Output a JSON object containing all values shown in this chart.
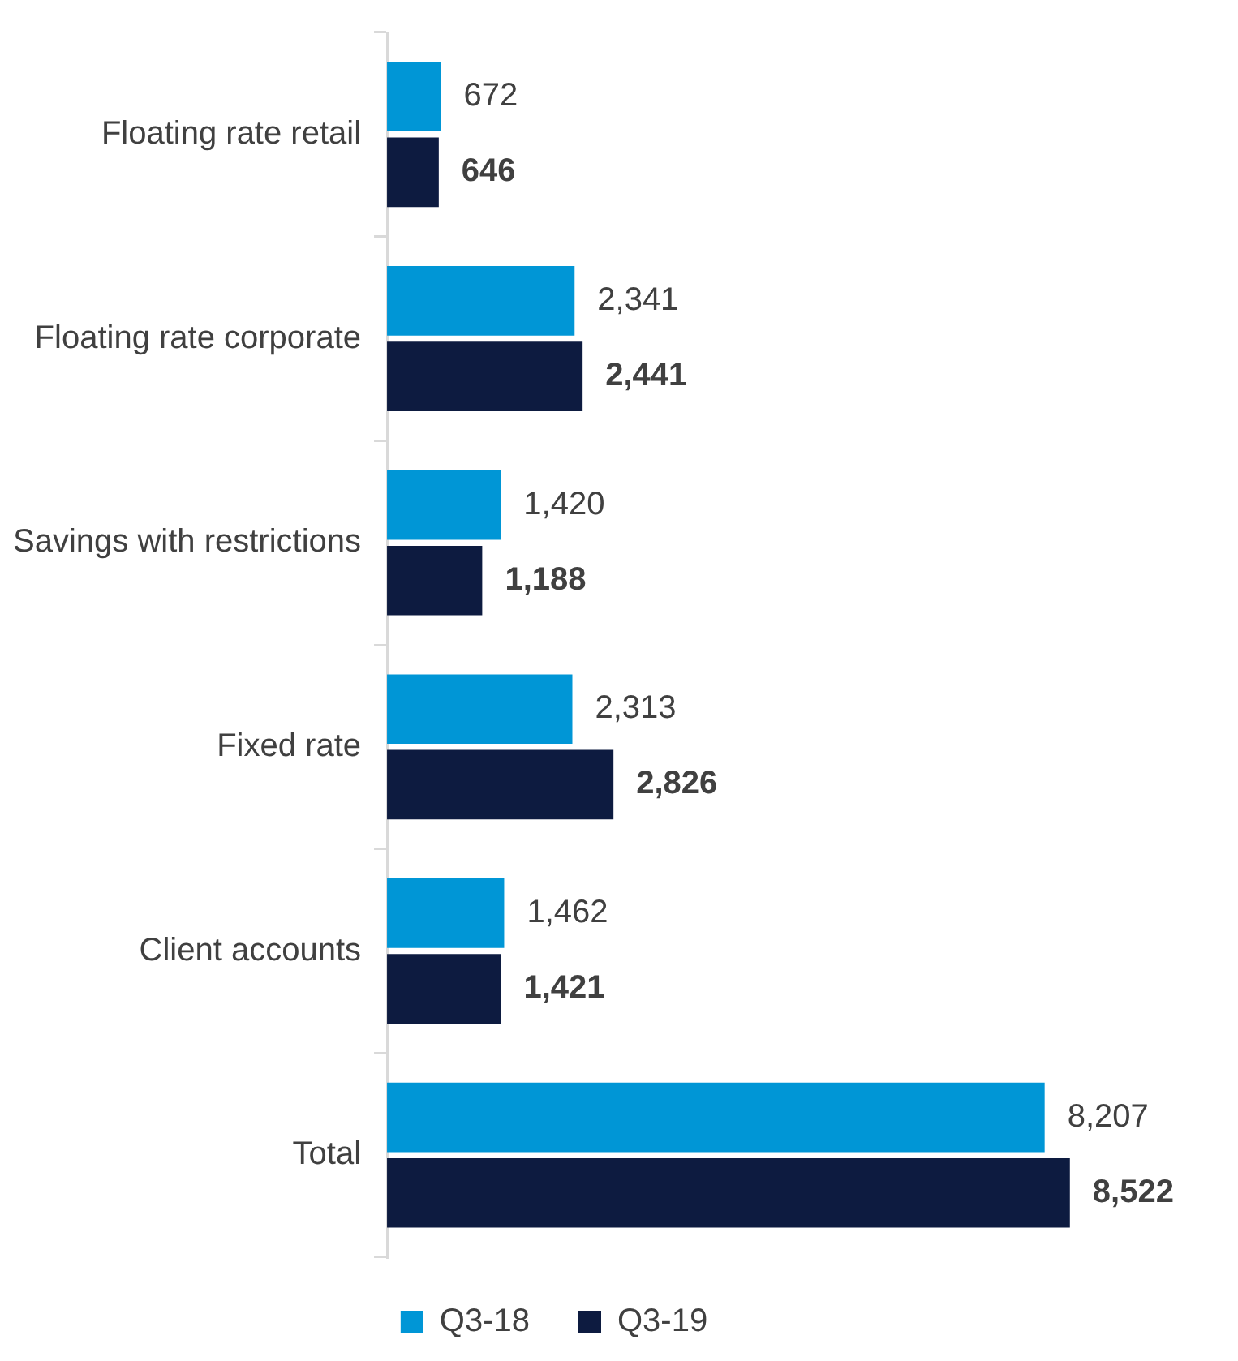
{
  "chart_data": {
    "type": "bar",
    "orientation": "horizontal",
    "categories": [
      "Floating rate retail",
      "Floating rate corporate",
      "Savings with restrictions",
      "Fixed rate",
      "Client accounts",
      "Total"
    ],
    "series": [
      {
        "name": "Q3-18",
        "color": "#0096d6",
        "values": [
          672,
          2341,
          1420,
          2313,
          1462,
          8207
        ],
        "value_labels": [
          "672",
          "2,341",
          "1,420",
          "2,313",
          "1,462",
          "8,207"
        ]
      },
      {
        "name": "Q3-19",
        "color": "#0d1b40",
        "values": [
          646,
          2441,
          1188,
          2826,
          1421,
          8522
        ],
        "value_labels": [
          "646",
          "2,441",
          "1,188",
          "2,826",
          "1,421",
          "8,522"
        ]
      }
    ],
    "tick_labels": "y",
    "legend": "bottom"
  }
}
